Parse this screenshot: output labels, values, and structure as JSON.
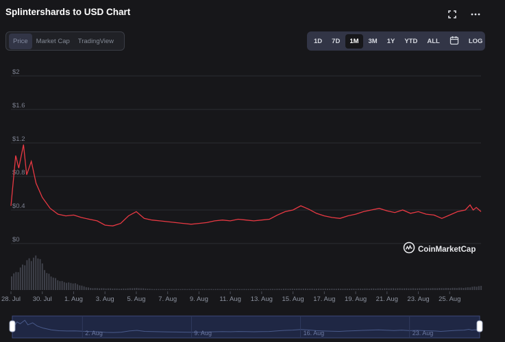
{
  "header": {
    "title": "Splintershards to USD Chart"
  },
  "icons": {
    "fullscreen": "fullscreen-icon",
    "more": "more-icon",
    "calendar": "calendar-icon",
    "brand": "coinmarketcap-logo-icon"
  },
  "view_tabs": [
    {
      "label": "Price",
      "active": true
    },
    {
      "label": "Market Cap",
      "active": false
    },
    {
      "label": "TradingView",
      "active": false
    }
  ],
  "range_tabs": [
    {
      "label": "1D",
      "active": false
    },
    {
      "label": "7D",
      "active": false
    },
    {
      "label": "1M",
      "active": true
    },
    {
      "label": "3M",
      "active": false
    },
    {
      "label": "1Y",
      "active": false
    },
    {
      "label": "YTD",
      "active": false
    },
    {
      "label": "ALL",
      "active": false
    }
  ],
  "log_label": "LOG",
  "brand": "CoinMarketCap",
  "colors": {
    "line": "#ea3943",
    "grid": "#2b2d33",
    "volume": "#3e4049",
    "navigator_bg": "#1f2744",
    "navigator_border": "#3c4a7a",
    "navigator_line": "#4a5b8c"
  },
  "chart_data": {
    "type": "line",
    "title": "Splintershards to USD Chart",
    "y_ticks": [
      "$0",
      "$0.4",
      "$0.8",
      "$1.2",
      "$1.6",
      "$2"
    ],
    "ylim": [
      0,
      2
    ],
    "x_tick_labels": [
      "28. Jul",
      "30. Jul",
      "1. Aug",
      "3. Aug",
      "5. Aug",
      "7. Aug",
      "9. Aug",
      "11. Aug",
      "13. Aug",
      "15. Aug",
      "17. Aug",
      "19. Aug",
      "21. Aug",
      "23. Aug",
      "25. Aug"
    ],
    "navigator_labels": [
      "2. Aug",
      "9. Aug",
      "16. Aug",
      "23. Aug"
    ],
    "series": [
      {
        "x": [
          0,
          0.3,
          0.5,
          0.8,
          1.0,
          1.3,
          1.6,
          2.0,
          2.5,
          3.0,
          3.5,
          4.0,
          4.5,
          5.0,
          5.5,
          6.0,
          6.5,
          7.0,
          7.5,
          8.0,
          8.5,
          9.0,
          9.5,
          10.0,
          10.5,
          11.0,
          11.5,
          12.0,
          12.5,
          13.0,
          13.5,
          14.0,
          14.5,
          15.0,
          15.5,
          16.0,
          16.5,
          17.0,
          17.5,
          18.0,
          18.5,
          19.0,
          19.5,
          20.0,
          20.5,
          21.0,
          21.5,
          22.0,
          22.5,
          23.0,
          23.5,
          24.0,
          24.5,
          25.0,
          25.5,
          26.0,
          26.5,
          27.0,
          27.5,
          28.0,
          28.5,
          29.0,
          29.3,
          29.5,
          29.7,
          30.0
        ],
        "values": [
          0.45,
          1.05,
          0.9,
          1.18,
          0.82,
          0.98,
          0.72,
          0.55,
          0.42,
          0.35,
          0.33,
          0.34,
          0.31,
          0.29,
          0.27,
          0.22,
          0.21,
          0.24,
          0.33,
          0.38,
          0.3,
          0.28,
          0.27,
          0.26,
          0.25,
          0.24,
          0.23,
          0.24,
          0.25,
          0.27,
          0.28,
          0.27,
          0.29,
          0.28,
          0.27,
          0.28,
          0.29,
          0.34,
          0.38,
          0.4,
          0.45,
          0.41,
          0.36,
          0.33,
          0.31,
          0.3,
          0.33,
          0.35,
          0.38,
          0.4,
          0.42,
          0.39,
          0.37,
          0.4,
          0.36,
          0.38,
          0.35,
          0.34,
          0.3,
          0.34,
          0.38,
          0.4,
          0.46,
          0.4,
          0.43,
          0.38
        ]
      }
    ],
    "volume": {
      "x": [
        0,
        0.25,
        0.5,
        0.75,
        1.0,
        1.25,
        1.5,
        1.75,
        2.0,
        2.25,
        2.5,
        2.75,
        3.0,
        3.5,
        4.0,
        4.5,
        5.0,
        6.0,
        7.0,
        8.0,
        9.0,
        10.0,
        12.0,
        14.0,
        16.0,
        18.0,
        20.0,
        22.0,
        24.0,
        26.0,
        28.0,
        29.0,
        29.5,
        30.0
      ],
      "values": [
        0.45,
        0.5,
        0.62,
        0.75,
        0.88,
        0.92,
        0.97,
        1.0,
        0.7,
        0.5,
        0.42,
        0.35,
        0.28,
        0.22,
        0.2,
        0.12,
        0.06,
        0.05,
        0.04,
        0.06,
        0.03,
        0.03,
        0.03,
        0.03,
        0.03,
        0.04,
        0.04,
        0.04,
        0.05,
        0.05,
        0.06,
        0.07,
        0.1,
        0.12
      ]
    }
  }
}
